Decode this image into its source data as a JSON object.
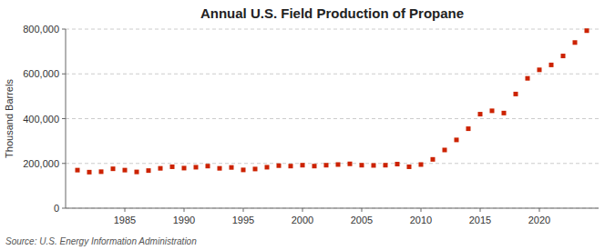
{
  "chart_data": {
    "type": "scatter",
    "title": "Annual U.S. Field Production of Propane",
    "ylabel": "Thousand Barrels",
    "annotations": [
      "Source: U.S. Energy Information Administration"
    ],
    "color": "#cc2200",
    "marker": "square",
    "grid": true,
    "xlim": [
      1980,
      2025
    ],
    "xticks": [
      1985,
      1990,
      1995,
      2000,
      2005,
      2010,
      2015,
      2020
    ],
    "ylim": [
      0,
      800000
    ],
    "yticks": [
      0,
      {
        "value": 200000,
        "label": "200,000"
      },
      {
        "value": 400000,
        "label": "400,000"
      },
      {
        "value": 600000,
        "label": "600,000"
      },
      {
        "value": 800000,
        "label": "800,000"
      }
    ],
    "x": [
      1981,
      1982,
      1983,
      1984,
      1985,
      1986,
      1987,
      1988,
      1989,
      1990,
      1991,
      1992,
      1993,
      1994,
      1995,
      1996,
      1997,
      1998,
      1999,
      2000,
      2001,
      2002,
      2003,
      2004,
      2005,
      2006,
      2007,
      2008,
      2009,
      2010,
      2011,
      2012,
      2013,
      2014,
      2015,
      2016,
      2017,
      2018,
      2019,
      2020,
      2021,
      2022,
      2023,
      2024
    ],
    "values": [
      170000,
      161000,
      163000,
      176000,
      170000,
      162000,
      168000,
      178000,
      185000,
      179000,
      183000,
      188000,
      178000,
      182000,
      171000,
      175000,
      183000,
      190000,
      188000,
      192000,
      188000,
      192000,
      195000,
      198000,
      192000,
      191000,
      192000,
      197000,
      185000,
      195000,
      218000,
      260000,
      305000,
      355000,
      420000,
      435000,
      425000,
      510000,
      580000,
      618000,
      640000,
      680000,
      740000,
      793000
    ]
  }
}
